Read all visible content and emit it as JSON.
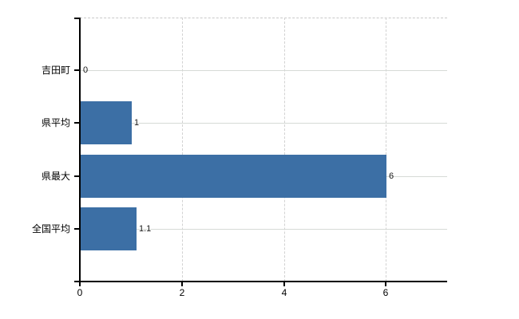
{
  "chart_data": {
    "type": "bar",
    "orientation": "horizontal",
    "title": "",
    "xlabel": "",
    "ylabel": "",
    "categories": [
      "吉田町",
      "県平均",
      "県最大",
      "全国平均"
    ],
    "values": [
      0,
      1,
      6,
      1.1
    ],
    "value_labels": [
      "0",
      "1",
      "6",
      "1.1"
    ],
    "x_ticks": [
      0,
      2,
      4,
      6
    ],
    "x_tick_labels": [
      "0",
      "2",
      "4",
      "6"
    ],
    "xlim": [
      0,
      7.2
    ],
    "grid": true,
    "legend": false,
    "colors": {
      "bar": "#3c6fa5",
      "axis": "#000000",
      "h_gridline": "#d6dad6",
      "v_gridline": "#d2d2d2",
      "top_border": "#c9c9c9",
      "background": "#ffffff",
      "text": "#000000"
    }
  }
}
